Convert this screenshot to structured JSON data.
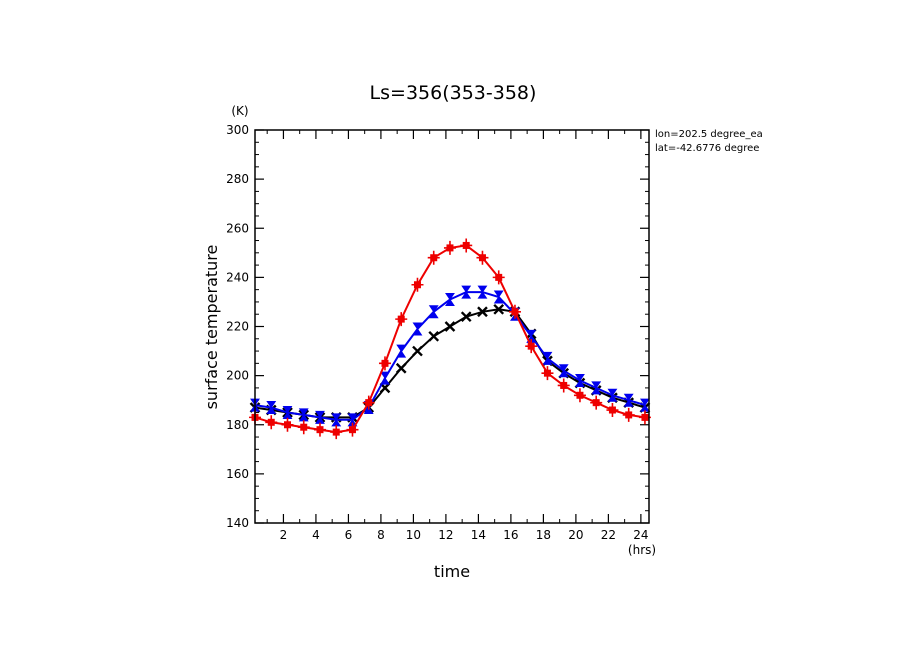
{
  "chart_data": {
    "type": "line",
    "title": "Ls=356(353-358)",
    "xlabel": "time",
    "ylabel": "surface temperature",
    "x_unit": "(hrs)",
    "y_unit": "(K)",
    "xlim": [
      0.25,
      24.5
    ],
    "ylim": [
      140,
      300
    ],
    "xticks": [
      2,
      4,
      6,
      8,
      10,
      12,
      14,
      16,
      18,
      20,
      22,
      24
    ],
    "yticks": [
      140,
      160,
      180,
      200,
      220,
      240,
      260,
      280,
      300
    ],
    "annotations": [
      "lon=202.5 degree_ea",
      "lat=-42.6776 degree"
    ],
    "x": [
      0.25,
      1.25,
      2.25,
      3.25,
      4.25,
      5.25,
      6.25,
      7.25,
      8.25,
      9.25,
      10.25,
      11.25,
      12.25,
      13.25,
      14.25,
      15.25,
      16.25,
      17.25,
      18.25,
      19.25,
      20.25,
      21.25,
      22.25,
      23.25,
      24.25
    ],
    "series": [
      {
        "color": "#000000",
        "marker": "x",
        "values": [
          187,
          186,
          185,
          184,
          183,
          183,
          183,
          187,
          195,
          203,
          210,
          216,
          220,
          224,
          226,
          227,
          226,
          217,
          206,
          201,
          197,
          194,
          191,
          189,
          187
        ]
      },
      {
        "color": "#0000ee",
        "marker": "bowtie",
        "values": [
          188,
          187,
          185,
          184,
          183,
          182,
          182,
          187,
          199,
          210,
          219,
          226,
          231,
          234,
          234,
          232,
          225,
          216,
          207,
          202,
          198,
          195,
          192,
          190,
          188
        ]
      },
      {
        "color": "#ee0000",
        "marker": "square",
        "values": [
          183,
          181,
          180,
          179,
          178,
          177,
          178,
          189,
          205,
          223,
          237,
          248,
          252,
          253,
          248,
          240,
          226,
          212,
          201,
          196,
          192,
          189,
          186,
          184,
          183
        ]
      }
    ]
  }
}
